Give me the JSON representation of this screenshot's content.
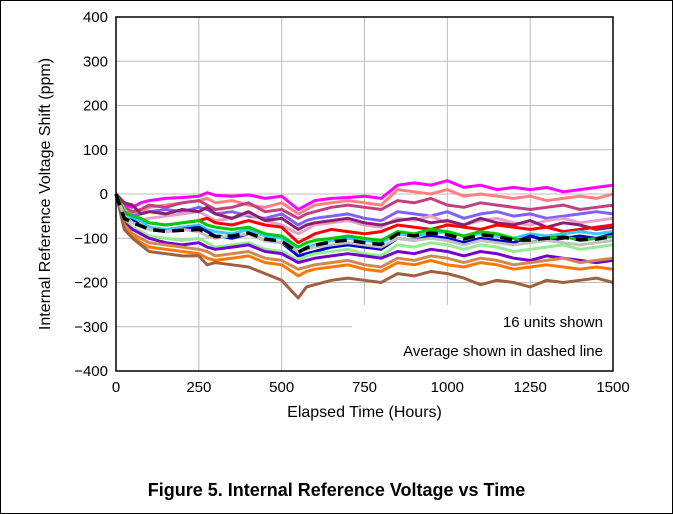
{
  "chart_data": {
    "type": "line",
    "xlabel": "Elapsed Time (Hours)",
    "ylabel": "Internal Reference Voltage Shift (ppm)",
    "xlim": [
      0,
      1500
    ],
    "ylim": [
      -400,
      400
    ],
    "x_ticks": [
      "0",
      "250",
      "500",
      "750",
      "1000",
      "1250",
      "1500"
    ],
    "y_ticks": [
      "400",
      "300",
      "200",
      "100",
      "0",
      "−100",
      "−200",
      "−300",
      "−400"
    ],
    "grid": true,
    "annotations": [
      "16 units shown",
      "Average shown in dashed line"
    ],
    "x": [
      0,
      25,
      50,
      75,
      100,
      150,
      200,
      250,
      275,
      300,
      350,
      400,
      450,
      500,
      550,
      575,
      600,
      650,
      700,
      750,
      800,
      850,
      900,
      950,
      1000,
      1050,
      1100,
      1150,
      1200,
      1250,
      1300,
      1350,
      1400,
      1450,
      1500
    ],
    "series": [
      {
        "color": "#FF00FF",
        "values": [
          0,
          -25,
          -30,
          -20,
          -15,
          -10,
          -8,
          -5,
          3,
          -3,
          -5,
          -2,
          -10,
          -5,
          -35,
          -25,
          -15,
          -10,
          -8,
          -5,
          -10,
          20,
          25,
          20,
          30,
          15,
          20,
          10,
          15,
          10,
          15,
          5,
          10,
          15,
          20
        ]
      },
      {
        "color": "#FF8080",
        "values": [
          0,
          -30,
          -45,
          -40,
          -30,
          -25,
          -20,
          -15,
          -10,
          -20,
          -15,
          -25,
          -30,
          -20,
          -45,
          -35,
          -25,
          -20,
          -15,
          -20,
          -25,
          10,
          5,
          0,
          10,
          -5,
          0,
          -5,
          -10,
          -5,
          -15,
          -10,
          -5,
          -10,
          0
        ]
      },
      {
        "color": "#C04080",
        "values": [
          0,
          -30,
          -40,
          -35,
          -25,
          -30,
          -20,
          -15,
          -25,
          -35,
          -30,
          -20,
          -40,
          -35,
          -55,
          -45,
          -40,
          -30,
          -25,
          -30,
          -35,
          -15,
          -20,
          -10,
          -25,
          -30,
          -20,
          -25,
          -30,
          -35,
          -30,
          -25,
          -35,
          -30,
          -25
        ]
      },
      {
        "color": "#8060FF",
        "values": [
          0,
          -40,
          -50,
          -45,
          -40,
          -35,
          -40,
          -30,
          -35,
          -45,
          -40,
          -50,
          -55,
          -45,
          -70,
          -60,
          -55,
          -50,
          -45,
          -55,
          -60,
          -40,
          -45,
          -50,
          -40,
          -55,
          -45,
          -40,
          -50,
          -45,
          -55,
          -50,
          -45,
          -40,
          -45
        ]
      },
      {
        "color": "#E8A0C8",
        "values": [
          0,
          -35,
          -55,
          -60,
          -55,
          -50,
          -45,
          -40,
          -50,
          -60,
          -55,
          -45,
          -60,
          -70,
          -90,
          -80,
          -70,
          -65,
          -60,
          -70,
          -75,
          -55,
          -60,
          -50,
          -65,
          -70,
          -60,
          -55,
          -65,
          -70,
          -60,
          -55,
          -65,
          -60,
          -55
        ]
      },
      {
        "color": "#8B2070",
        "values": [
          0,
          -20,
          -25,
          -45,
          -40,
          -45,
          -35,
          -40,
          -30,
          -45,
          -55,
          -40,
          -60,
          -55,
          -80,
          -70,
          -65,
          -60,
          -55,
          -65,
          -70,
          -60,
          -55,
          -65,
          -60,
          -70,
          -55,
          -65,
          -70,
          -60,
          -75,
          -65,
          -70,
          -80,
          -75
        ]
      },
      {
        "color": "#FF0000",
        "values": [
          0,
          -45,
          -55,
          -60,
          -65,
          -70,
          -65,
          -60,
          -55,
          -65,
          -70,
          -60,
          -70,
          -75,
          -110,
          -100,
          -90,
          -80,
          -85,
          -90,
          -85,
          -70,
          -75,
          -80,
          -70,
          -75,
          -80,
          -70,
          -75,
          -80,
          -75,
          -85,
          -80,
          -75,
          -70
        ]
      },
      {
        "color": "#33CCFF",
        "values": [
          0,
          -50,
          -55,
          -60,
          -75,
          -80,
          -75,
          -70,
          -80,
          -85,
          -90,
          -80,
          -95,
          -100,
          -130,
          -120,
          -115,
          -105,
          -100,
          -105,
          -110,
          -90,
          -95,
          -90,
          -85,
          -95,
          -90,
          -95,
          -100,
          -90,
          -95,
          -90,
          -85,
          -90,
          -85
        ]
      },
      {
        "color": "#0000CC",
        "values": [
          0,
          -55,
          -60,
          -70,
          -80,
          -85,
          -80,
          -75,
          -85,
          -95,
          -100,
          -90,
          -105,
          -110,
          -140,
          -135,
          -130,
          -120,
          -115,
          -120,
          -125,
          -100,
          -105,
          -95,
          -100,
          -110,
          -100,
          -105,
          -110,
          -95,
          -105,
          -100,
          -95,
          -100,
          -90
        ]
      },
      {
        "color": "#00CC00",
        "values": [
          0,
          -40,
          -50,
          -55,
          -65,
          -70,
          -65,
          -60,
          -70,
          -75,
          -80,
          -75,
          -90,
          -95,
          -120,
          -110,
          -105,
          -100,
          -95,
          -100,
          -105,
          -85,
          -90,
          -80,
          -85,
          -95,
          -85,
          -90,
          -100,
          -110,
          -100,
          -95,
          -105,
          -100,
          -95
        ]
      },
      {
        "color": "#90EE90",
        "values": [
          0,
          -60,
          -75,
          -85,
          -95,
          -100,
          -105,
          -100,
          -110,
          -120,
          -115,
          -110,
          -125,
          -130,
          -150,
          -140,
          -135,
          -130,
          -125,
          -135,
          -140,
          -115,
          -120,
          -110,
          -115,
          -125,
          -115,
          -120,
          -130,
          -125,
          -120,
          -115,
          -125,
          -120,
          -115
        ]
      },
      {
        "color": "#7700CC",
        "values": [
          0,
          -65,
          -80,
          -90,
          -100,
          -110,
          -115,
          -110,
          -120,
          -125,
          -120,
          -115,
          -130,
          -135,
          -155,
          -150,
          -145,
          -140,
          -135,
          -140,
          -145,
          -130,
          -135,
          -125,
          -130,
          -140,
          -130,
          -135,
          -145,
          -150,
          -140,
          -145,
          -150,
          -155,
          -150
        ]
      },
      {
        "color": "#D08A50",
        "values": [
          0,
          -70,
          -90,
          -100,
          -110,
          -115,
          -120,
          -125,
          -130,
          -140,
          -135,
          -130,
          -145,
          -150,
          -170,
          -165,
          -160,
          -155,
          -150,
          -160,
          -165,
          -145,
          -150,
          -140,
          -145,
          -155,
          -145,
          -150,
          -160,
          -155,
          -150,
          -145,
          -155,
          -150,
          -145
        ]
      },
      {
        "color": "#FF7700",
        "values": [
          0,
          -75,
          -95,
          -110,
          -120,
          -125,
          -130,
          -135,
          -145,
          -150,
          -145,
          -140,
          -155,
          -160,
          -185,
          -175,
          -170,
          -165,
          -160,
          -170,
          -175,
          -155,
          -160,
          -150,
          -160,
          -165,
          -155,
          -160,
          -170,
          -165,
          -160,
          -165,
          -170,
          -165,
          -170
        ]
      },
      {
        "color": "#A06040",
        "values": [
          0,
          -80,
          -100,
          -115,
          -130,
          -135,
          -140,
          -140,
          -160,
          -155,
          -160,
          -165,
          -180,
          -195,
          -235,
          -210,
          -205,
          -195,
          -190,
          -195,
          -200,
          -180,
          -185,
          -175,
          -180,
          -190,
          -205,
          -195,
          -200,
          -210,
          -195,
          -200,
          -195,
          -190,
          -200
        ]
      },
      {
        "color": "#C0C0C0",
        "values": [
          0,
          -50,
          -65,
          -70,
          -80,
          -85,
          -80,
          -85,
          -95,
          -100,
          -95,
          -90,
          -105,
          -110,
          -130,
          -125,
          -120,
          -115,
          -110,
          -115,
          -120,
          -100,
          -105,
          -100,
          -105,
          -115,
          -105,
          -110,
          -115,
          -110,
          -105,
          -110,
          -115,
          -110,
          -105
        ]
      }
    ],
    "average": {
      "color": "#000000",
      "values": [
        0,
        -55,
        -65,
        -72,
        -80,
        -84,
        -82,
        -80,
        -88,
        -96,
        -95,
        -88,
        -102,
        -107,
        -132,
        -122,
        -116,
        -108,
        -104,
        -110,
        -114,
        -90,
        -95,
        -88,
        -92,
        -102,
        -92,
        -96,
        -104,
        -104,
        -100,
        -98,
        -103,
        -102,
        -96
      ]
    }
  },
  "caption": "Figure 5. Internal Reference Voltage vs Time"
}
